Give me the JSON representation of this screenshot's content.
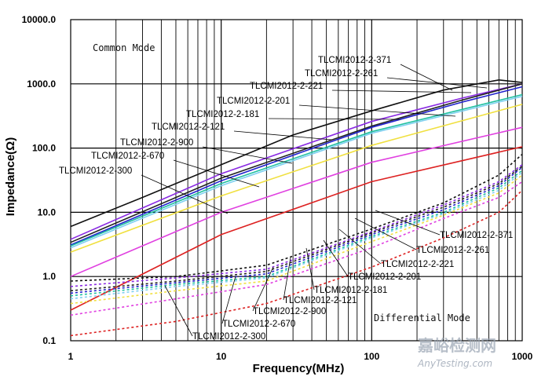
{
  "chart_data": {
    "type": "line",
    "xlabel": "Frequency(MHz)",
    "ylabel": "Impedance(Ω)",
    "xscale": "log",
    "yscale": "log",
    "xlim": [
      1,
      1000
    ],
    "ylim": [
      0.1,
      10000
    ],
    "x_tick_labels": [
      "1",
      "10",
      "100",
      "1000"
    ],
    "y_tick_labels": [
      "0.1",
      "1.0",
      "10.0",
      "100.0",
      "1000.0",
      "10000.0"
    ],
    "grid": true,
    "annotations": {
      "common": "Common Mode",
      "differential": "Differential Mode"
    },
    "common_labels": [
      "TLCMI2012-2-371",
      "TLCMI2012-2-261",
      "TLCMI2012-2-221",
      "TLCMI2012-2-201",
      "TLCMI2012-2-181",
      "TLCMI2012-2-121",
      "TLCMI2012-2-900",
      "TLCMI2012-2-670",
      "TLCMI2012-2-300"
    ],
    "diff_labels": [
      "TLCMI2012-2-371",
      "TLCMI2012-2-261",
      "TLCMI2012-2-221",
      "TLCMI2012-2-201",
      "TLCMI2012-2-181",
      "TLCMI2012-2-121",
      "TLCMI2012-2-900",
      "TLCMI2012-2-670",
      "TLCMI2012-2-300"
    ],
    "common_mode": [
      {
        "name": "TLCMI2012-2-371",
        "color": "#111111",
        "x": [
          1,
          3,
          10,
          30,
          100,
          300,
          700,
          1000
        ],
        "y": [
          6,
          17,
          55,
          160,
          380,
          800,
          1150,
          1050
        ]
      },
      {
        "name": "TLCMI2012-2-261",
        "color": "#8a2be2",
        "x": [
          1,
          10,
          100,
          400,
          1000
        ],
        "y": [
          3.8,
          40,
          260,
          600,
          1000
        ]
      },
      {
        "name": "TLCMI2012-2-221",
        "color": "#222222",
        "x": [
          1,
          10,
          100,
          400,
          1000
        ],
        "y": [
          3.4,
          34,
          220,
          560,
          1000
        ]
      },
      {
        "name": "TLCMI2012-2-201",
        "color": "#2222cc",
        "x": [
          1,
          10,
          100,
          400,
          1000
        ],
        "y": [
          3.1,
          31,
          210,
          520,
          900
        ]
      },
      {
        "name": "TLCMI2012-2-181",
        "color": "#20c0a0",
        "x": [
          1,
          10,
          100,
          1000
        ],
        "y": [
          3.0,
          28,
          180,
          680
        ]
      },
      {
        "name": "TLCMI2012-2-121",
        "color": "#7fd0f0",
        "x": [
          1,
          10,
          100,
          1000
        ],
        "y": [
          2.8,
          26,
          170,
          640
        ]
      },
      {
        "name": "TLCMI2012-2-900",
        "color": "#f0e040",
        "x": [
          1,
          10,
          100,
          1000
        ],
        "y": [
          2.4,
          18,
          110,
          480
        ]
      },
      {
        "name": "TLCMI2012-2-670",
        "color": "#e040e0",
        "x": [
          1,
          10,
          100,
          1000
        ],
        "y": [
          1.0,
          10,
          60,
          210
        ]
      },
      {
        "name": "TLCMI2012-2-300",
        "color": "#dd2222",
        "x": [
          1,
          10,
          100,
          1000
        ],
        "y": [
          0.3,
          4.5,
          30,
          105
        ]
      }
    ],
    "differential_mode": [
      {
        "name": "TLCMI2012-2-371",
        "color": "#111111",
        "x": [
          1,
          5,
          20,
          100,
          300,
          700,
          1000
        ],
        "y": [
          0.85,
          1.0,
          1.5,
          5.5,
          14,
          38,
          80
        ]
      },
      {
        "name": "TLCMI2012-2-261",
        "color": "#8a2be2",
        "x": [
          1,
          5,
          20,
          100,
          300,
          700,
          1000
        ],
        "y": [
          0.7,
          0.95,
          1.3,
          5,
          13,
          30,
          55
        ]
      },
      {
        "name": "TLCMI2012-2-221",
        "color": "#222222",
        "x": [
          1,
          5,
          20,
          100,
          300,
          700,
          1000
        ],
        "y": [
          0.6,
          0.85,
          1.2,
          4.8,
          12,
          28,
          52
        ]
      },
      {
        "name": "TLCMI2012-2-201",
        "color": "#2222cc",
        "x": [
          1,
          5,
          20,
          100,
          300,
          700,
          1000
        ],
        "y": [
          0.55,
          0.8,
          1.1,
          4.5,
          11,
          26,
          50
        ]
      },
      {
        "name": "TLCMI2012-2-181",
        "color": "#20c0a0",
        "x": [
          1,
          5,
          20,
          100,
          300,
          700,
          1000
        ],
        "y": [
          0.5,
          0.75,
          1.0,
          4.2,
          10,
          24,
          45
        ]
      },
      {
        "name": "TLCMI2012-2-121",
        "color": "#7fd0f0",
        "x": [
          1,
          5,
          20,
          100,
          300,
          700,
          1000
        ],
        "y": [
          0.45,
          0.7,
          0.95,
          4.0,
          9.5,
          22,
          42
        ]
      },
      {
        "name": "TLCMI2012-2-900",
        "color": "#f0e040",
        "x": [
          1,
          5,
          20,
          100,
          300,
          700,
          1000
        ],
        "y": [
          0.38,
          0.6,
          0.85,
          3.5,
          9,
          20,
          38
        ]
      },
      {
        "name": "TLCMI2012-2-670",
        "color": "#e040e0",
        "x": [
          1,
          5,
          20,
          100,
          300,
          700,
          1000
        ],
        "y": [
          0.25,
          0.45,
          0.75,
          2.8,
          8,
          17,
          30
        ]
      },
      {
        "name": "TLCMI2012-2-300",
        "color": "#dd2222",
        "x": [
          1,
          5,
          20,
          100,
          300,
          700,
          1000
        ],
        "y": [
          0.12,
          0.2,
          0.38,
          1.4,
          4,
          10,
          22
        ]
      }
    ]
  },
  "watermark": {
    "cn": "嘉峪检测网",
    "en": "AnyTesting.com"
  }
}
